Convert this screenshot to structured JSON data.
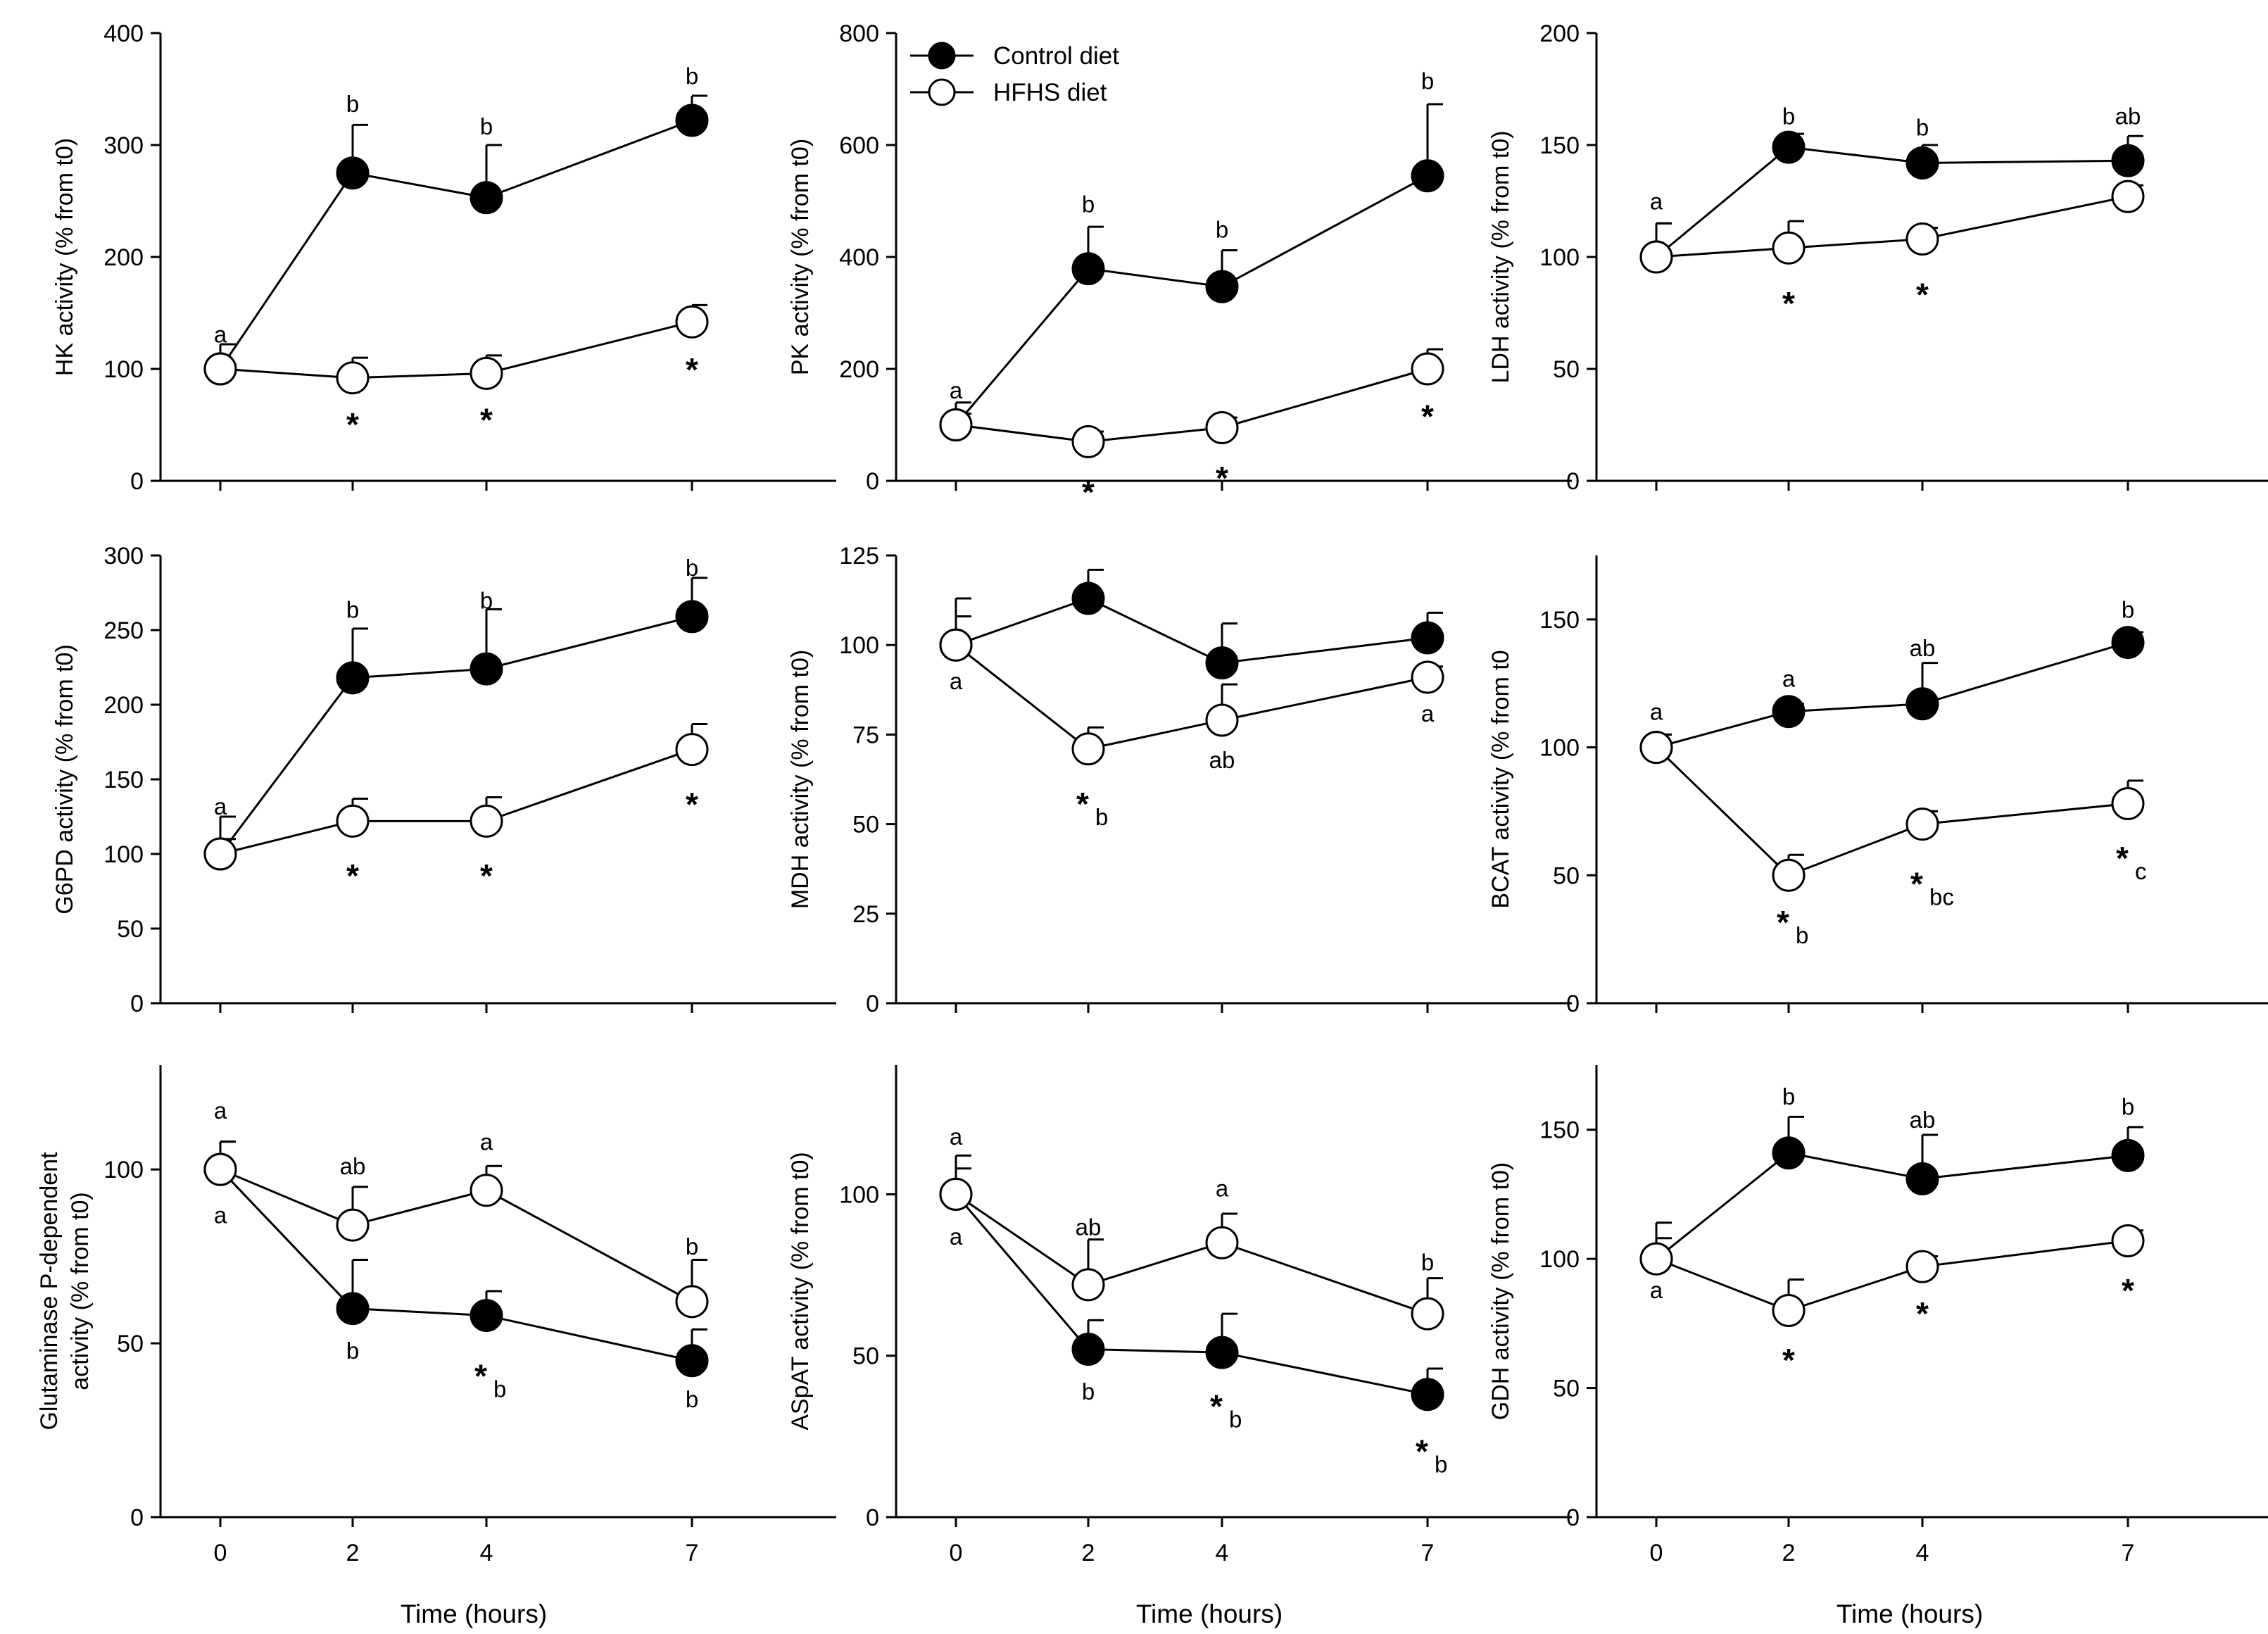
{
  "figure": {
    "legend": {
      "series": [
        {
          "name": "Control diet",
          "marker": "filled"
        },
        {
          "name": "HFHS diet",
          "marker": "open"
        }
      ]
    },
    "x_axis_title": "Time (hours)",
    "colors": {
      "ink": "#000000",
      "open_fill": "#ffffff"
    }
  },
  "chart_data": [
    {
      "id": "hk",
      "type": "line",
      "ylabel": "HK activity (% from t0)",
      "x": [
        0,
        2,
        4,
        7
      ],
      "xticks": [
        "0",
        "2",
        "4",
        "7"
      ],
      "ylim": [
        0,
        400
      ],
      "yticks": [
        0,
        100,
        200,
        300,
        400
      ],
      "show_xlabel": false,
      "series": [
        {
          "name": "Control diet",
          "values": [
            100,
            275,
            253,
            322
          ],
          "err": [
            22,
            43,
            47,
            22
          ]
        },
        {
          "name": "HFHS diet",
          "values": [
            100,
            92,
            96,
            142
          ],
          "err": [
            22,
            18,
            16,
            15
          ]
        }
      ],
      "annotations": [
        {
          "x": 0,
          "y": 131,
          "text": "a"
        },
        {
          "x": 2,
          "y": 337,
          "text": "b"
        },
        {
          "x": 4,
          "y": 317,
          "text": "b"
        },
        {
          "x": 7,
          "y": 362,
          "text": "b"
        },
        {
          "x": 2,
          "y": 58,
          "text": "*",
          "star": true
        },
        {
          "x": 4,
          "y": 62,
          "text": "*",
          "star": true
        },
        {
          "x": 7,
          "y": 107,
          "text": "*",
          "star": true
        }
      ]
    },
    {
      "id": "pk",
      "type": "line",
      "ylabel": "PK activity (% from t0)",
      "x": [
        0,
        2,
        4,
        7
      ],
      "xticks": [
        "0",
        "2",
        "4",
        "7"
      ],
      "ylim": [
        0,
        800
      ],
      "yticks": [
        0,
        200,
        400,
        600,
        800
      ],
      "show_xlabel": false,
      "legend": true,
      "series": [
        {
          "name": "Control diet",
          "values": [
            100,
            379,
            347,
            545
          ],
          "err": [
            40,
            75,
            65,
            128
          ]
        },
        {
          "name": "HFHS diet",
          "values": [
            100,
            70,
            95,
            200
          ],
          "err": [
            20,
            18,
            18,
            35
          ]
        }
      ],
      "annotations": [
        {
          "x": 0,
          "y": 162,
          "text": "a"
        },
        {
          "x": 2,
          "y": 495,
          "text": "b"
        },
        {
          "x": 4,
          "y": 450,
          "text": "b"
        },
        {
          "x": 7,
          "y": 715,
          "text": "b"
        },
        {
          "x": 2,
          "y": -5,
          "text": "*",
          "star": true
        },
        {
          "x": 4,
          "y": 20,
          "text": "*",
          "star": true
        },
        {
          "x": 7,
          "y": 130,
          "text": "*",
          "star": true
        }
      ]
    },
    {
      "id": "ldh",
      "type": "line",
      "ylabel": "LDH activity (% from t0)",
      "x": [
        0,
        2,
        4,
        7
      ],
      "xticks": [
        "0",
        "2",
        "4",
        "7"
      ],
      "ylim": [
        0,
        200
      ],
      "yticks": [
        0,
        50,
        100,
        150,
        200
      ],
      "show_xlabel": false,
      "series": [
        {
          "name": "Control diet",
          "values": [
            100,
            149,
            142,
            143
          ],
          "err": [
            15,
            6,
            8,
            11
          ]
        },
        {
          "name": "HFHS diet",
          "values": [
            100,
            104,
            108,
            127
          ],
          "err": [
            15,
            12,
            5,
            5
          ]
        }
      ],
      "annotations": [
        {
          "x": 0,
          "y": 125,
          "text": "a"
        },
        {
          "x": 2,
          "y": 163,
          "text": "b"
        },
        {
          "x": 4,
          "y": 158,
          "text": "b"
        },
        {
          "x": 7,
          "y": 163,
          "text": "ab"
        },
        {
          "x": 2,
          "y": 83,
          "text": "*",
          "star": true
        },
        {
          "x": 4,
          "y": 87,
          "text": "*",
          "star": true
        }
      ]
    },
    {
      "id": "g6pd",
      "type": "line",
      "ylabel": "G6PD activity (% from t0)",
      "x": [
        0,
        2,
        4,
        7
      ],
      "xticks": [
        "0",
        "2",
        "4",
        "7"
      ],
      "ylim": [
        0,
        300
      ],
      "yticks": [
        0,
        50,
        100,
        150,
        200,
        250,
        300
      ],
      "show_xlabel": false,
      "series": [
        {
          "name": "Control diet",
          "values": [
            100,
            218,
            224,
            259
          ],
          "err": [
            10,
            33,
            40,
            26
          ]
        },
        {
          "name": "HFHS diet",
          "values": [
            100,
            122,
            122,
            170
          ],
          "err": [
            25,
            15,
            16,
            17
          ]
        }
      ],
      "annotations": [
        {
          "x": 0,
          "y": 132,
          "text": "a"
        },
        {
          "x": 2,
          "y": 264,
          "text": "b"
        },
        {
          "x": 4,
          "y": 270,
          "text": "b"
        },
        {
          "x": 7,
          "y": 292,
          "text": "b"
        },
        {
          "x": 2,
          "y": 91,
          "text": "*",
          "star": true
        },
        {
          "x": 4,
          "y": 91,
          "text": "*",
          "star": true
        },
        {
          "x": 7,
          "y": 139,
          "text": "*",
          "star": true
        }
      ]
    },
    {
      "id": "mdh",
      "type": "line",
      "ylabel": "MDH activity (% from t0)",
      "x": [
        0,
        2,
        4,
        7
      ],
      "xticks": [
        "0",
        "2",
        "4",
        "7"
      ],
      "ylim": [
        0,
        125
      ],
      "yticks": [
        0,
        25,
        50,
        75,
        100,
        125
      ],
      "show_xlabel": false,
      "series": [
        {
          "name": "Control diet",
          "values": [
            100,
            113,
            95,
            102
          ],
          "err": [
            8,
            8,
            11,
            7
          ]
        },
        {
          "name": "HFHS diet",
          "values": [
            100,
            71,
            79,
            91
          ],
          "err": [
            13,
            6,
            10,
            3
          ]
        }
      ],
      "annotations": [
        {
          "x": 0,
          "y": 90,
          "text": "a"
        },
        {
          "x": 4,
          "y": 68,
          "text": "ab"
        },
        {
          "x": 7,
          "y": 81,
          "text": "a"
        },
        {
          "x": 2,
          "y": 58,
          "text": "*",
          "star": true,
          "sub": "b"
        }
      ]
    },
    {
      "id": "bcat",
      "type": "line",
      "ylabel": "BCAT activity (% from t0",
      "x": [
        0,
        2,
        4,
        7
      ],
      "xticks": [
        "0",
        "2",
        "4",
        "7"
      ],
      "ylim": [
        0,
        175
      ],
      "yticks": [
        0,
        50,
        100,
        150
      ],
      "show_xlabel": false,
      "series": [
        {
          "name": "Control diet",
          "values": [
            100,
            114,
            117,
            141
          ],
          "err": [
            5,
            3,
            16,
            4
          ]
        },
        {
          "name": "HFHS diet",
          "values": [
            100,
            50,
            70,
            78
          ],
          "err": [
            5,
            8,
            5,
            9
          ]
        }
      ],
      "annotations": [
        {
          "x": 0,
          "y": 114,
          "text": "a"
        },
        {
          "x": 2,
          "y": 127,
          "text": "a"
        },
        {
          "x": 4,
          "y": 139,
          "text": "ab"
        },
        {
          "x": 7,
          "y": 154,
          "text": "b"
        },
        {
          "x": 2,
          "y": 35,
          "text": "*",
          "star": true,
          "sub": "b"
        },
        {
          "x": 4,
          "y": 50,
          "text": "*",
          "star": true,
          "sub": "bc"
        },
        {
          "x": 7,
          "y": 60,
          "text": "*",
          "star": true,
          "sub": "c"
        }
      ]
    },
    {
      "id": "glutaminase",
      "type": "line",
      "ylabel": "Glutaminase P-dependent\nactivity (% from t0)",
      "x": [
        0,
        2,
        4,
        7
      ],
      "xticks": [
        "0",
        "2",
        "4",
        "7"
      ],
      "ylim": [
        0,
        130
      ],
      "yticks": [
        0,
        50,
        100
      ],
      "show_xlabel": true,
      "series": [
        {
          "name": "Control diet",
          "values": [
            100,
            60,
            58,
            45
          ],
          "err": [
            8,
            14,
            7,
            9
          ]
        },
        {
          "name": "HFHS diet",
          "values": [
            100,
            84,
            94,
            62
          ],
          "err": [
            8,
            11,
            7,
            12
          ]
        }
      ],
      "annotations": [
        {
          "x": 0,
          "y": 117,
          "text": "a"
        },
        {
          "x": 0,
          "y": 87,
          "text": "a"
        },
        {
          "x": 2,
          "y": 101,
          "text": "ab"
        },
        {
          "x": 4,
          "y": 108,
          "text": "a"
        },
        {
          "x": 7,
          "y": 78,
          "text": "b"
        },
        {
          "x": 2,
          "y": 48,
          "text": "b"
        },
        {
          "x": 7,
          "y": 34,
          "text": "b"
        },
        {
          "x": 4,
          "y": 43,
          "text": "*",
          "star": true,
          "sub": "b"
        }
      ]
    },
    {
      "id": "aspat",
      "type": "line",
      "ylabel": "ASpAT activity (% from t0)",
      "x": [
        0,
        2,
        4,
        7
      ],
      "xticks": [
        "0",
        "2",
        "4",
        "7"
      ],
      "ylim": [
        0,
        140
      ],
      "yticks": [
        0,
        50,
        100
      ],
      "show_xlabel": true,
      "series": [
        {
          "name": "Control diet",
          "values": [
            100,
            52,
            51,
            38
          ],
          "err": [
            8,
            9,
            12,
            8
          ]
        },
        {
          "name": "HFHS diet",
          "values": [
            100,
            72,
            85,
            63
          ],
          "err": [
            12,
            14,
            9,
            11
          ]
        }
      ],
      "annotations": [
        {
          "x": 0,
          "y": 118,
          "text": "a"
        },
        {
          "x": 0,
          "y": 87,
          "text": "a"
        },
        {
          "x": 2,
          "y": 90,
          "text": "ab"
        },
        {
          "x": 4,
          "y": 102,
          "text": "a"
        },
        {
          "x": 7,
          "y": 79,
          "text": "b"
        },
        {
          "x": 2,
          "y": 39,
          "text": "b"
        },
        {
          "x": 4,
          "y": 37,
          "text": "*",
          "star": true,
          "sub": "b"
        },
        {
          "x": 7,
          "y": 23,
          "text": "*",
          "star": true,
          "sub": "b"
        }
      ]
    },
    {
      "id": "gdh",
      "type": "line",
      "ylabel": "GDH activity (% from t0)",
      "x": [
        0,
        2,
        4,
        7
      ],
      "xticks": [
        "0",
        "2",
        "4",
        "7"
      ],
      "ylim": [
        0,
        175
      ],
      "yticks": [
        0,
        50,
        100,
        150
      ],
      "show_xlabel": true,
      "series": [
        {
          "name": "Control diet",
          "values": [
            100,
            141,
            131,
            140
          ],
          "err": [
            8,
            14,
            17,
            11
          ]
        },
        {
          "name": "HFHS diet",
          "values": [
            100,
            80,
            97,
            107
          ],
          "err": [
            14,
            12,
            4,
            4
          ]
        }
      ],
      "annotations": [
        {
          "x": 0,
          "y": 88,
          "text": "a"
        },
        {
          "x": 2,
          "y": 163,
          "text": "b"
        },
        {
          "x": 4,
          "y": 154,
          "text": "ab"
        },
        {
          "x": 7,
          "y": 159,
          "text": "b"
        },
        {
          "x": 2,
          "y": 64,
          "text": "*",
          "star": true
        },
        {
          "x": 4,
          "y": 82,
          "text": "*",
          "star": true
        },
        {
          "x": 7,
          "y": 91,
          "text": "*",
          "star": true
        }
      ]
    }
  ]
}
